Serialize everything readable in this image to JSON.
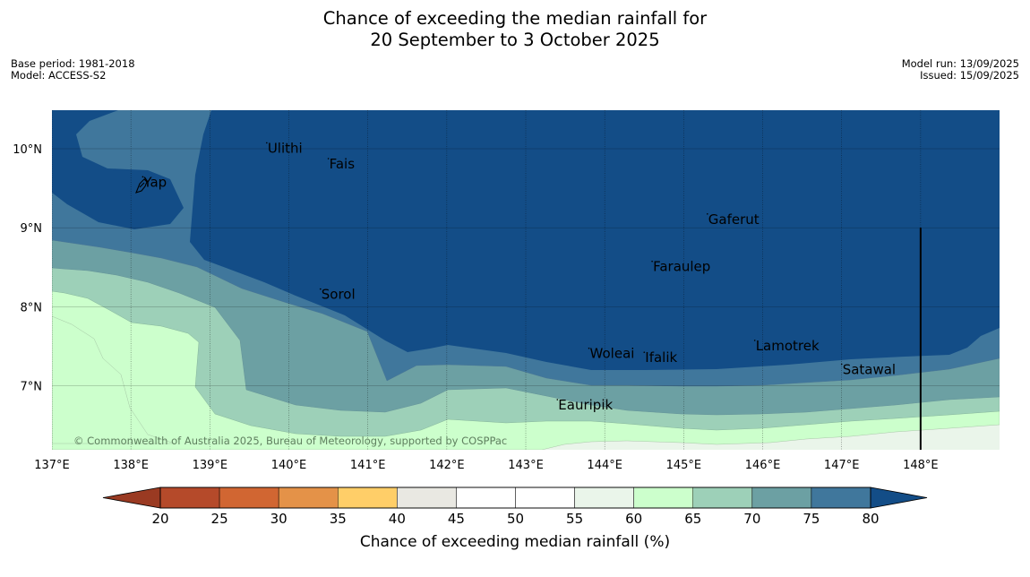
{
  "title": {
    "line1": "Chance of exceeding the median rainfall for",
    "line2": "20 September to 3 October 2025"
  },
  "meta": {
    "base_period": "Base period: 1981-2018",
    "model": "Model: ACCESS-S2",
    "model_run": "Model run: 13/09/2025",
    "issued": "Issued: 15/09/2025"
  },
  "map": {
    "lon_range": [
      137,
      149
    ],
    "lat_range": [
      6.2,
      10.5
    ],
    "lon_ticks": [
      {
        "value": 137,
        "label": "137°E"
      },
      {
        "value": 138,
        "label": "138°E"
      },
      {
        "value": 139,
        "label": "139°E"
      },
      {
        "value": 140,
        "label": "140°E"
      },
      {
        "value": 141,
        "label": "141°E"
      },
      {
        "value": 142,
        "label": "142°E"
      },
      {
        "value": 143,
        "label": "143°E"
      },
      {
        "value": 144,
        "label": "144°E"
      },
      {
        "value": 145,
        "label": "145°E"
      },
      {
        "value": 146,
        "label": "146°E"
      },
      {
        "value": 147,
        "label": "147°E"
      },
      {
        "value": 148,
        "label": "148°E"
      }
    ],
    "lat_ticks": [
      {
        "value": 10,
        "label": "10°N"
      },
      {
        "value": 9,
        "label": "9°N"
      },
      {
        "value": 8,
        "label": "8°N"
      },
      {
        "value": 7,
        "label": "7°N"
      }
    ],
    "places": [
      {
        "name": "Yap",
        "lon": 138.15,
        "lat": 9.52
      },
      {
        "name": "Ulithi",
        "lon": 139.72,
        "lat": 9.95
      },
      {
        "name": "Fais",
        "lon": 140.5,
        "lat": 9.75
      },
      {
        "name": "Gaferut",
        "lon": 145.3,
        "lat": 9.05
      },
      {
        "name": "Faraulep",
        "lon": 144.6,
        "lat": 8.45
      },
      {
        "name": "Sorol",
        "lon": 140.4,
        "lat": 8.1
      },
      {
        "name": "Woleai",
        "lon": 143.8,
        "lat": 7.35
      },
      {
        "name": "Ifalik",
        "lon": 144.5,
        "lat": 7.3
      },
      {
        "name": "Lamotrek",
        "lon": 145.9,
        "lat": 7.45
      },
      {
        "name": "Satawal",
        "lon": 147.0,
        "lat": 7.15
      },
      {
        "name": "Eauripik",
        "lon": 143.4,
        "lat": 6.7
      }
    ],
    "meridian_line_lon": 148,
    "copyright": "© Commonwealth of Australia 2025, Bureau of Meteorology, supported by COSPPac"
  },
  "colorbar": {
    "ticks": [
      "20",
      "25",
      "30",
      "35",
      "40",
      "45",
      "50",
      "55",
      "60",
      "65",
      "70",
      "75",
      "80"
    ],
    "colors": [
      "#b54a2a",
      "#d16632",
      "#e49248",
      "#ffce68",
      "#e9e8e2",
      "#ffffff",
      "#ffffff",
      "#eaf5ea",
      "#ccffcc",
      "#9dd0b8",
      "#6ca0a3",
      "#40779c"
    ],
    "under_color": "#9a3a22",
    "over_color": "#134d87",
    "label": "Chance of exceeding median rainfall (%)"
  },
  "palette": {
    "p55_60": "#eaf5ea",
    "p60_65": "#ccffcc",
    "p65_70": "#9dd0b8",
    "p70_75": "#6ca0a3",
    "p75_80": "#40779c",
    "p80_plus": "#134d87"
  }
}
